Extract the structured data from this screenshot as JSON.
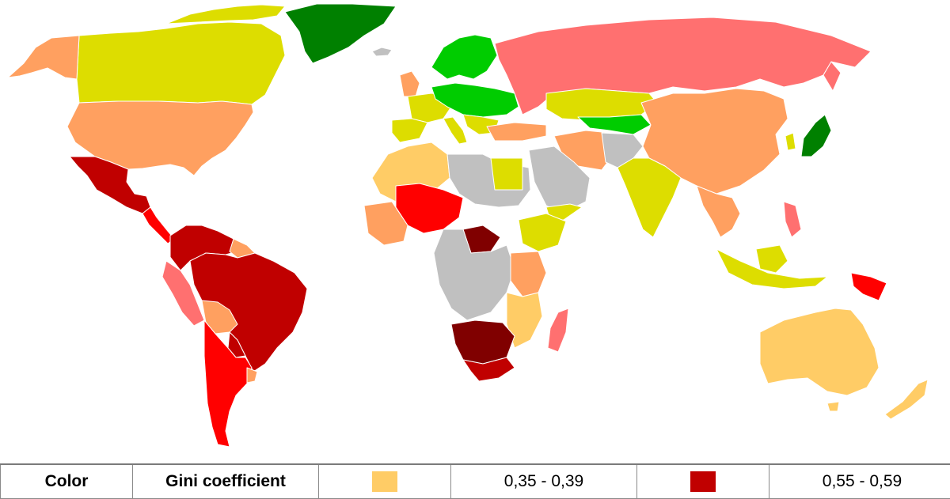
{
  "legend": {
    "header_color": "Color",
    "header_gini": "Gini coefficient",
    "entries": [
      {
        "color": "#ffcc66",
        "range": "0,35 - 0,39"
      },
      {
        "color": "#c00000",
        "range": "0,55 - 0,59"
      }
    ]
  },
  "palette": {
    "0.25-0.29": "#008000",
    "0.30-0.34": "#00cc00",
    "0.30-0.34_yellow": "#dddd00",
    "0.35-0.39": "#ffcc66",
    "0.40-0.44": "#ffa060",
    "0.45-0.49": "#ff7070",
    "0.50-0.54": "#ff0000",
    "0.55-0.59": "#c00000",
    "0.60+": "#800000",
    "no_data": "#c0c0c0"
  }
}
